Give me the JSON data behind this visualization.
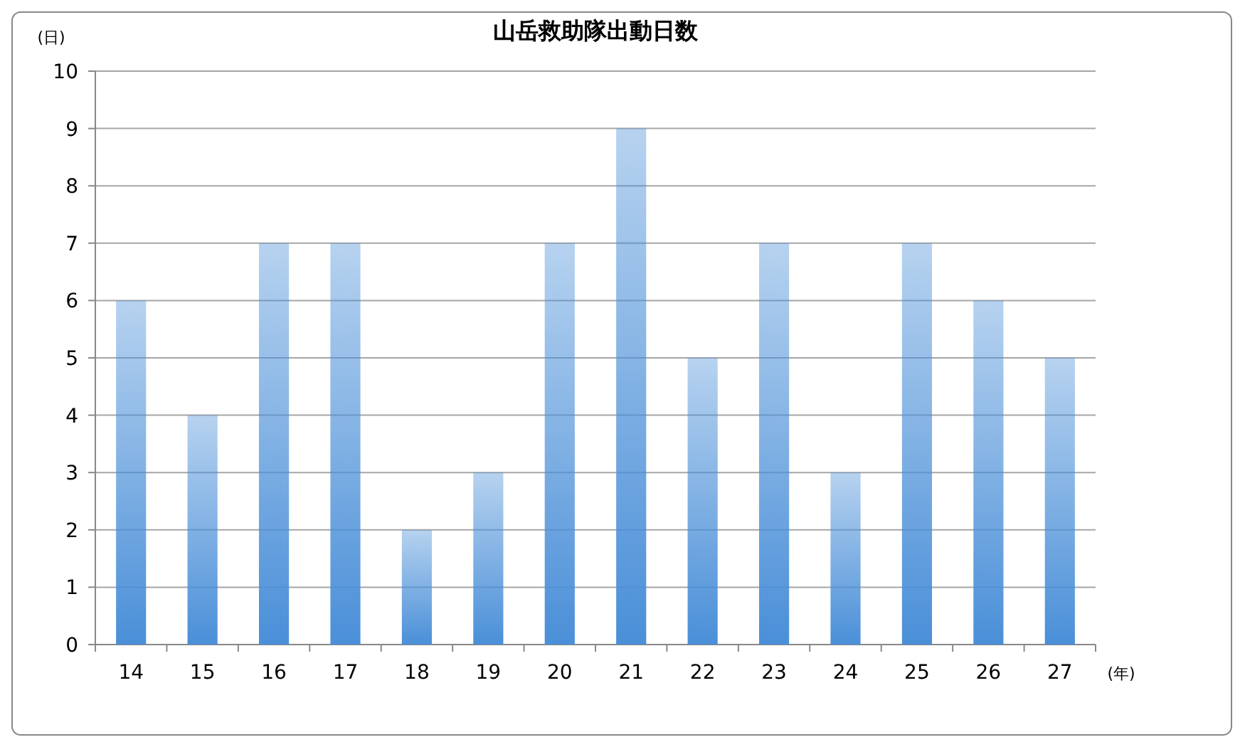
{
  "chart_data": {
    "type": "bar",
    "title": "山岳救助隊出動日数",
    "ylabel": "(日)",
    "xlabel": "(年)",
    "categories": [
      "14",
      "15",
      "16",
      "17",
      "18",
      "19",
      "20",
      "21",
      "22",
      "23",
      "24",
      "25",
      "26",
      "27"
    ],
    "values": [
      6,
      4,
      7,
      7,
      2,
      3,
      7,
      9,
      5,
      7,
      3,
      7,
      6,
      5
    ],
    "color": "#4a8fd8",
    "ylim": [
      0,
      10
    ],
    "yticks": [
      0,
      1,
      2,
      3,
      4,
      5,
      6,
      7,
      8,
      9,
      10
    ],
    "grid": "y"
  }
}
